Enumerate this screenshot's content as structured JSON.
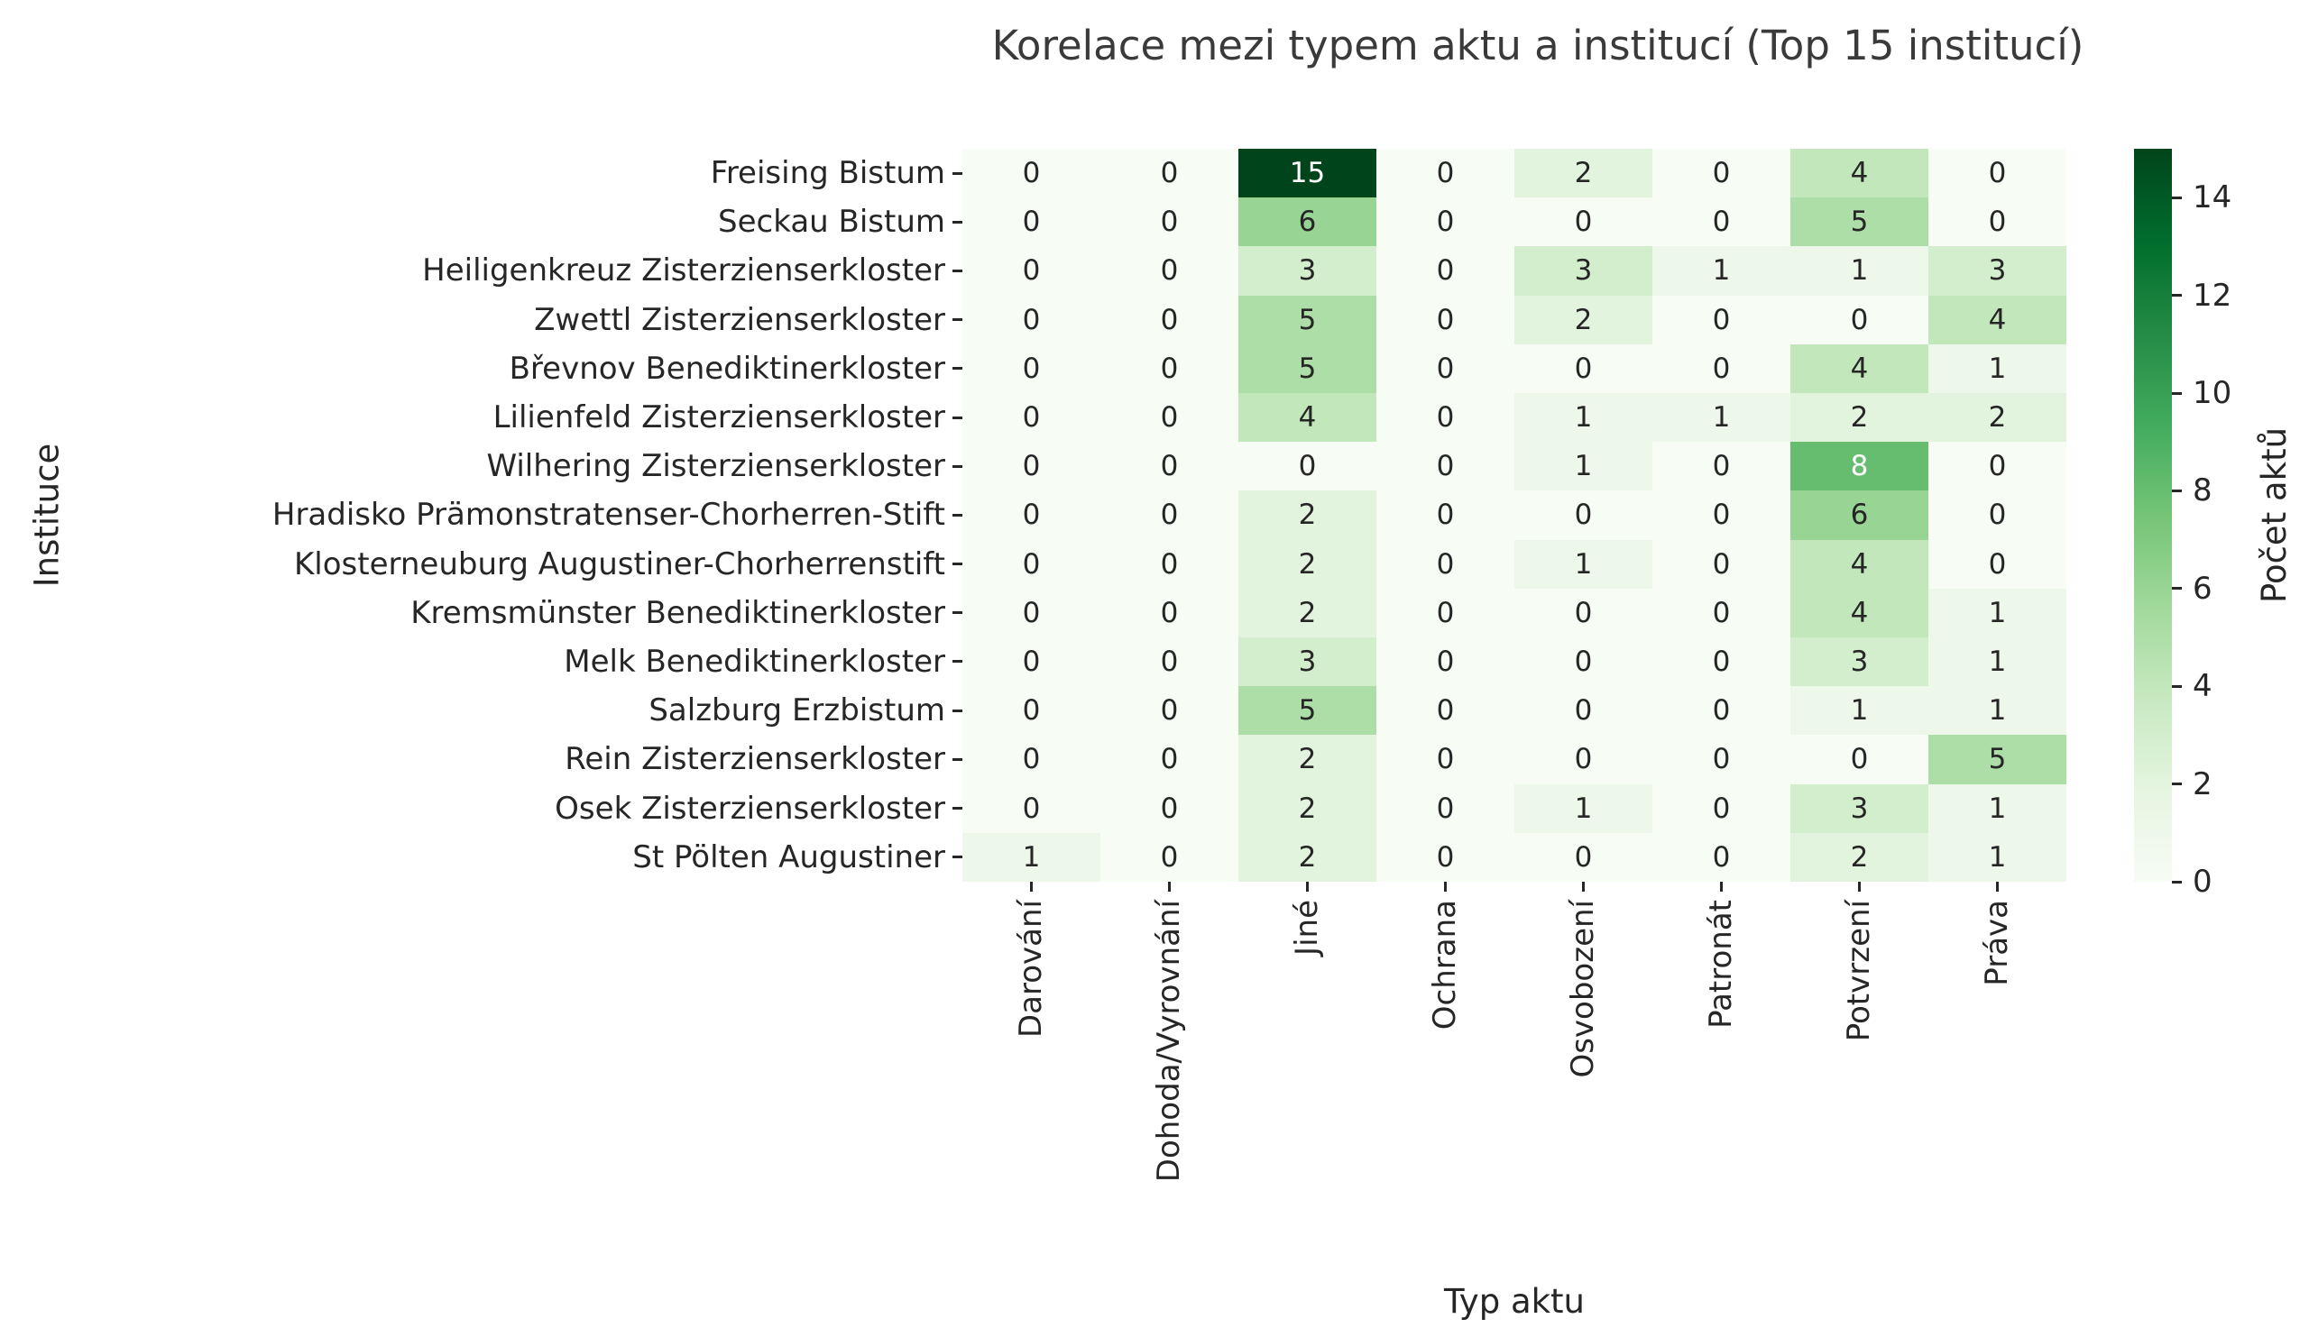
{
  "chart_data": {
    "type": "heatmap",
    "title": "Korelace mezi typem aktu a institucí (Top 15 institucí)",
    "xlabel": "Typ aktu",
    "ylabel": "Instituce",
    "x_categories": [
      "Darování",
      "Dohoda/Vyrovnání",
      "Jiné",
      "Ochrana",
      "Osvobození",
      "Patronát",
      "Potvrzení",
      "Práva"
    ],
    "y_categories": [
      "Freising Bistum",
      "Seckau Bistum",
      "Heiligenkreuz Zisterzienserkloster",
      "Zwettl Zisterzienserkloster",
      "Břevnov Benediktinerkloster",
      "Lilienfeld Zisterzienserkloster",
      "Wilhering Zisterzienserkloster",
      "Hradisko Prämonstratenser-Chorherren-Stift",
      "Klosterneuburg Augustiner-Chorherrenstift",
      "Kremsmünster Benediktinerkloster",
      "Melk Benediktinerkloster",
      "Salzburg Erzbistum",
      "Rein Zisterzienserkloster",
      "Osek Zisterzienserkloster",
      "St Pölten Augustiner"
    ],
    "matrix": [
      [
        0,
        0,
        15,
        0,
        2,
        0,
        4,
        0
      ],
      [
        0,
        0,
        6,
        0,
        0,
        0,
        5,
        0
      ],
      [
        0,
        0,
        3,
        0,
        3,
        1,
        1,
        3
      ],
      [
        0,
        0,
        5,
        0,
        2,
        0,
        0,
        4
      ],
      [
        0,
        0,
        5,
        0,
        0,
        0,
        4,
        1
      ],
      [
        0,
        0,
        4,
        0,
        1,
        1,
        2,
        2
      ],
      [
        0,
        0,
        0,
        0,
        1,
        0,
        8,
        0
      ],
      [
        0,
        0,
        2,
        0,
        0,
        0,
        6,
        0
      ],
      [
        0,
        0,
        2,
        0,
        1,
        0,
        4,
        0
      ],
      [
        0,
        0,
        2,
        0,
        0,
        0,
        4,
        1
      ],
      [
        0,
        0,
        3,
        0,
        0,
        0,
        3,
        1
      ],
      [
        0,
        0,
        5,
        0,
        0,
        0,
        1,
        1
      ],
      [
        0,
        0,
        2,
        0,
        0,
        0,
        0,
        5
      ],
      [
        0,
        0,
        2,
        0,
        1,
        0,
        3,
        1
      ],
      [
        1,
        0,
        2,
        0,
        0,
        0,
        2,
        1
      ]
    ],
    "colorbar": {
      "label": "Počet aktů",
      "ticks": [
        0,
        2,
        4,
        6,
        8,
        10,
        12,
        14
      ],
      "vmin": 0,
      "vmax": 15,
      "position": "right"
    },
    "colormap": {
      "name": "Greens",
      "anchors": [
        "#f7fcf5",
        "#e5f5e0",
        "#c7e9c0",
        "#a1d99b",
        "#74c476",
        "#41ab5d",
        "#238b45",
        "#006d2c",
        "#00441b"
      ]
    },
    "text_colors": {
      "dark": "#262626",
      "light": "#ffffff"
    },
    "grid": false,
    "annotated": true
  }
}
